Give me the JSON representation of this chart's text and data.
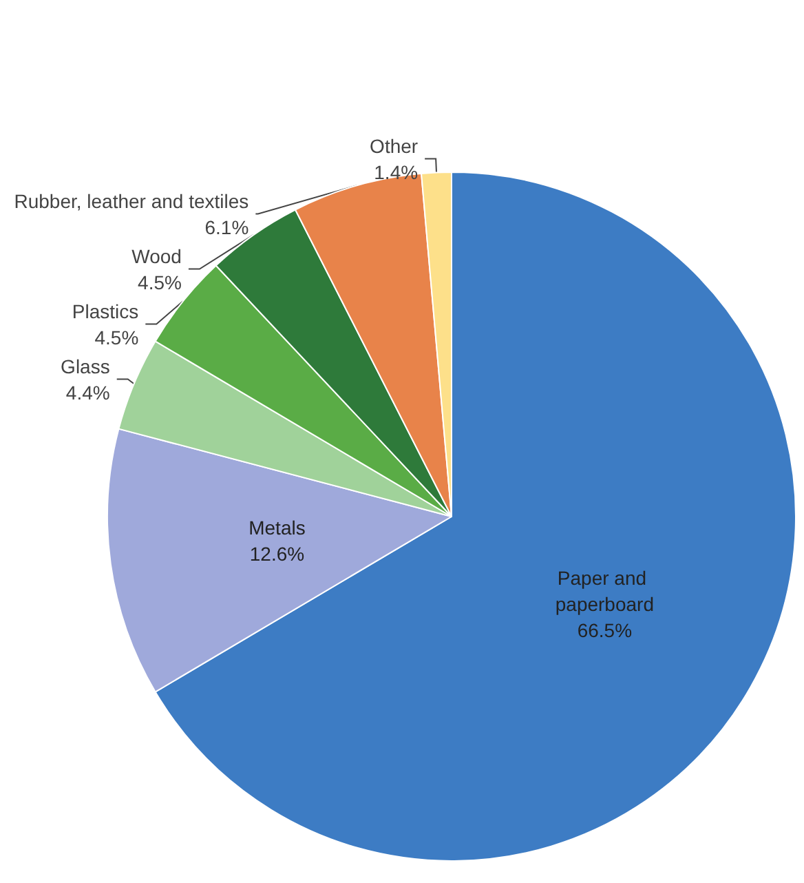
{
  "chart_data": {
    "type": "pie",
    "categories": [
      "Paper and paperboard",
      "Metals",
      "Glass",
      "Plastics",
      "Wood",
      "Rubber, leather and textiles",
      "Other"
    ],
    "values": [
      66.5,
      12.6,
      4.4,
      4.5,
      4.5,
      6.1,
      1.4
    ],
    "colors": [
      "#3d7cc4",
      "#9fa9db",
      "#a0d29a",
      "#5aac46",
      "#2e7a3a",
      "#e8834a",
      "#fde08a"
    ],
    "value_labels": [
      "66.5%",
      "12.6%",
      "4.4%",
      "4.5%",
      "4.5%",
      "6.1%",
      "1.4%"
    ],
    "legend": false
  }
}
